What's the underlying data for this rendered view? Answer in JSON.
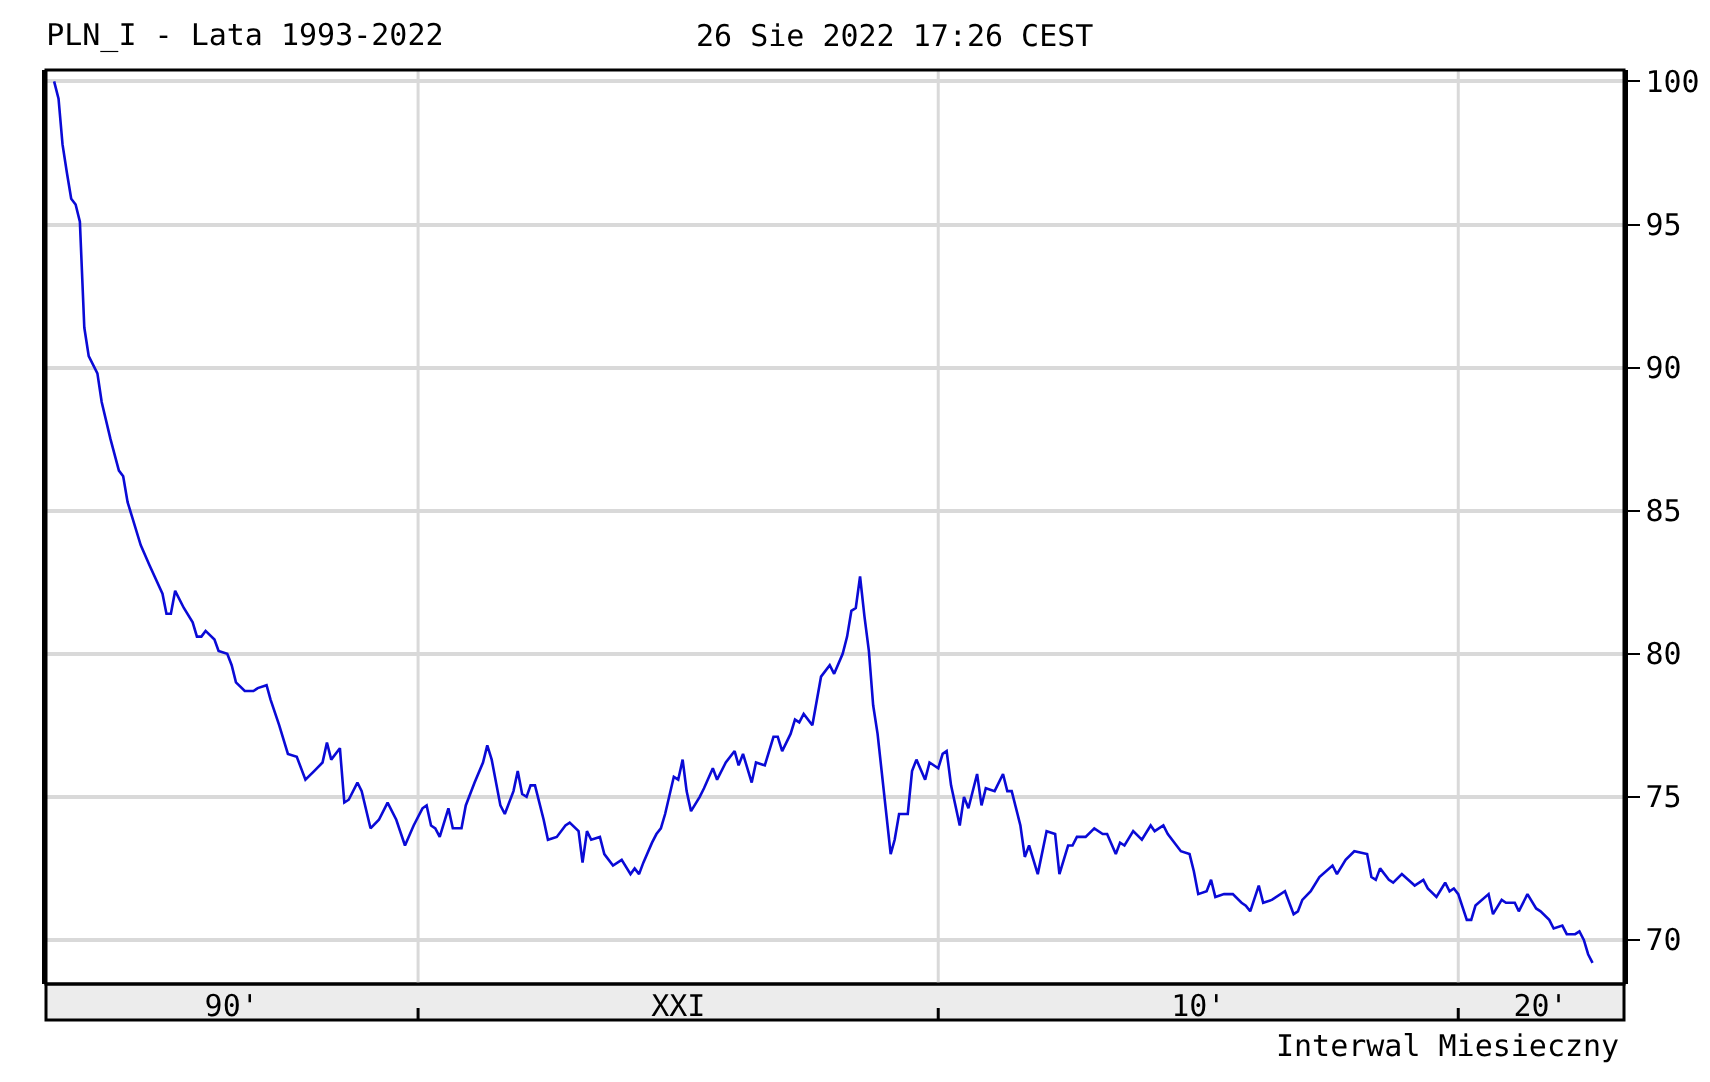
{
  "chart_data": {
    "type": "line",
    "title": "PLN_I - Lata 1993-2022",
    "subtitle": "26 Sie 2022 17:26 CEST",
    "annotations": [
      "Interwal Miesieczny"
    ],
    "x": [
      "1993-01",
      "1993-02",
      "1993-03",
      "1993-04",
      "1993-05",
      "1993-06",
      "1993-07",
      "1993-08",
      "1993-09",
      "1993-11",
      "1993-12",
      "1994-02",
      "1994-04",
      "1994-05",
      "1994-06",
      "1994-09",
      "1994-11",
      "1995-02",
      "1995-03",
      "1995-04",
      "1995-05",
      "1995-07",
      "1995-09",
      "1995-10",
      "1995-11",
      "1995-12",
      "1996-02",
      "1996-03",
      "1996-05",
      "1996-06",
      "1996-07",
      "1996-09",
      "1996-11",
      "1996-12",
      "1997-02",
      "1997-03",
      "1997-05",
      "1997-07",
      "1997-09",
      "1997-11",
      "1998-01",
      "1998-03",
      "1998-04",
      "1998-05",
      "1998-07",
      "1998-08",
      "1998-09",
      "1998-11",
      "1998-12",
      "1999-02",
      "1999-04",
      "1999-06",
      "1999-08",
      "1999-10",
      "1999-12",
      "2000-02",
      "2000-03",
      "2000-04",
      "2000-05",
      "2000-06",
      "2000-08",
      "2000-09",
      "2000-11",
      "2000-12",
      "2001-02",
      "2001-04",
      "2001-05",
      "2001-06",
      "2001-08",
      "2001-09",
      "2001-11",
      "2001-12",
      "2002-01",
      "2002-02",
      "2002-03",
      "2002-04",
      "2002-06",
      "2002-07",
      "2002-09",
      "2002-11",
      "2002-12",
      "2003-02",
      "2003-03",
      "2003-04",
      "2003-05",
      "2003-07",
      "2003-08",
      "2003-10",
      "2003-12",
      "2004-02",
      "2004-03",
      "2004-04",
      "2004-05",
      "2004-07",
      "2004-08",
      "2004-09",
      "2004-10",
      "2004-12",
      "2005-01",
      "2005-02",
      "2005-03",
      "2005-04",
      "2005-06",
      "2005-07",
      "2005-09",
      "2005-10",
      "2005-12",
      "2006-02",
      "2006-03",
      "2006-04",
      "2006-06",
      "2006-07",
      "2006-09",
      "2006-11",
      "2006-12",
      "2007-01",
      "2007-03",
      "2007-04",
      "2007-05",
      "2007-06",
      "2007-08",
      "2007-10",
      "2007-12",
      "2008-01",
      "2008-03",
      "2008-04",
      "2008-05",
      "2008-06",
      "2008-07",
      "2008-08",
      "2008-09",
      "2008-10",
      "2008-11",
      "2009-02",
      "2009-03",
      "2009-04",
      "2009-06",
      "2009-07",
      "2009-08",
      "2009-10",
      "2009-11",
      "2010-01",
      "2010-02",
      "2010-03",
      "2010-04",
      "2010-06",
      "2010-07",
      "2010-08",
      "2010-10",
      "2010-11",
      "2010-12",
      "2011-02",
      "2011-04",
      "2011-05",
      "2011-06",
      "2011-08",
      "2011-09",
      "2011-10",
      "2011-12",
      "2012-02",
      "2012-04",
      "2012-05",
      "2012-07",
      "2012-08",
      "2012-09",
      "2012-11",
      "2013-01",
      "2013-03",
      "2013-04",
      "2013-06",
      "2013-07",
      "2013-08",
      "2013-10",
      "2013-12",
      "2014-02",
      "2014-03",
      "2014-05",
      "2014-06",
      "2014-09",
      "2014-11",
      "2014-12",
      "2015-01",
      "2015-03",
      "2015-04",
      "2015-05",
      "2015-07",
      "2015-09",
      "2015-11",
      "2015-12",
      "2016-01",
      "2016-03",
      "2016-04",
      "2016-06",
      "2016-09",
      "2016-11",
      "2016-12",
      "2017-01",
      "2017-03",
      "2017-05",
      "2017-08",
      "2017-09",
      "2017-11",
      "2018-01",
      "2018-04",
      "2018-05",
      "2018-06",
      "2018-07",
      "2018-09",
      "2018-10",
      "2018-12",
      "2019-03",
      "2019-05",
      "2019-06",
      "2019-08",
      "2019-10",
      "2019-11",
      "2019-12",
      "2020-01",
      "2020-03",
      "2020-04",
      "2020-05",
      "2020-08",
      "2020-09",
      "2020-11",
      "2020-12",
      "2021-02",
      "2021-03",
      "2021-05",
      "2021-07",
      "2021-08",
      "2021-10",
      "2021-11",
      "2022-01",
      "2022-02",
      "2022-04",
      "2022-05",
      "2022-06",
      "2022-07",
      "2022-08"
    ],
    "series": [
      {
        "color": "#0a0ad6",
        "values": [
          100.0,
          99.4,
          97.8,
          96.8,
          95.9,
          95.7,
          95.1,
          91.4,
          90.4,
          89.8,
          88.8,
          87.5,
          86.4,
          86.2,
          85.3,
          83.8,
          83.1,
          82.1,
          81.4,
          81.4,
          82.2,
          81.6,
          81.1,
          80.6,
          80.6,
          80.8,
          80.5,
          80.1,
          80.0,
          79.6,
          79.0,
          78.7,
          78.7,
          78.8,
          78.9,
          78.4,
          77.5,
          76.5,
          76.4,
          75.6,
          75.9,
          76.2,
          76.9,
          76.3,
          76.7,
          74.8,
          74.9,
          75.5,
          75.2,
          73.9,
          74.2,
          74.8,
          74.2,
          73.3,
          74.0,
          74.6,
          74.7,
          74.0,
          73.9,
          73.6,
          74.6,
          73.9,
          73.9,
          74.7,
          75.5,
          76.2,
          76.8,
          76.3,
          74.7,
          74.4,
          75.2,
          75.9,
          75.1,
          75.0,
          75.4,
          75.4,
          74.2,
          73.5,
          73.6,
          74.0,
          74.1,
          73.8,
          72.7,
          73.8,
          73.5,
          73.6,
          73.0,
          72.6,
          72.8,
          72.3,
          72.5,
          72.3,
          72.7,
          73.4,
          73.7,
          73.9,
          74.4,
          75.7,
          75.6,
          76.3,
          75.2,
          74.5,
          75.0,
          75.3,
          76.0,
          75.6,
          76.2,
          76.6,
          76.1,
          76.5,
          75.5,
          76.2,
          76.1,
          77.1,
          77.1,
          76.6,
          77.2,
          77.7,
          77.6,
          77.9,
          77.5,
          79.2,
          79.6,
          79.3,
          80.0,
          80.6,
          81.5,
          81.6,
          82.7,
          81.3,
          80.1,
          78.2,
          77.2,
          73.0,
          73.5,
          74.4,
          74.4,
          75.9,
          76.3,
          75.6,
          76.2,
          76.0,
          76.5,
          76.6,
          75.4,
          74.0,
          75.0,
          74.6,
          75.8,
          74.7,
          75.3,
          75.2,
          75.8,
          75.2,
          75.2,
          74.0,
          72.9,
          73.3,
          72.3,
          73.8,
          73.7,
          72.3,
          73.3,
          73.3,
          73.6,
          73.6,
          73.9,
          73.7,
          73.7,
          73.0,
          73.4,
          73.3,
          73.8,
          73.5,
          74.0,
          73.8,
          74.0,
          73.7,
          73.1,
          73.0,
          72.4,
          71.6,
          71.7,
          72.1,
          71.5,
          71.6,
          71.6,
          71.3,
          71.2,
          71.0,
          71.9,
          71.3,
          71.4,
          71.7,
          70.9,
          71.0,
          71.4,
          71.7,
          72.2,
          72.6,
          72.3,
          72.8,
          73.1,
          73.0,
          72.2,
          72.1,
          72.5,
          72.1,
          72.0,
          72.3,
          71.9,
          72.1,
          71.8,
          71.5,
          72.0,
          71.7,
          71.8,
          71.6,
          70.7,
          70.7,
          71.2,
          71.6,
          70.9,
          71.4,
          71.3,
          71.3,
          71.0,
          71.6,
          71.1,
          71.0,
          70.7,
          70.4,
          70.5,
          70.2,
          70.2,
          70.3,
          70.0,
          69.5,
          69.2
        ]
      }
    ],
    "xlim": [
      "1992-11-05",
      "2023-03-10"
    ],
    "xticks": [
      {
        "value": "1996-06",
        "label": "90'"
      },
      {
        "value": "2000-01",
        "label": null
      },
      {
        "value": "2005-01",
        "label": "XXI"
      },
      {
        "value": "2010-01",
        "label": null
      },
      {
        "value": "2015-01",
        "label": "10'"
      },
      {
        "value": "2020-01",
        "label": null
      },
      {
        "value": "2021-08",
        "label": "20'"
      }
    ],
    "ylim": [
      68.46,
      100.4
    ],
    "yticks": [
      70,
      75,
      80,
      85,
      90,
      95,
      100
    ],
    "grid": true,
    "line_style": "solid",
    "marker": "none"
  }
}
